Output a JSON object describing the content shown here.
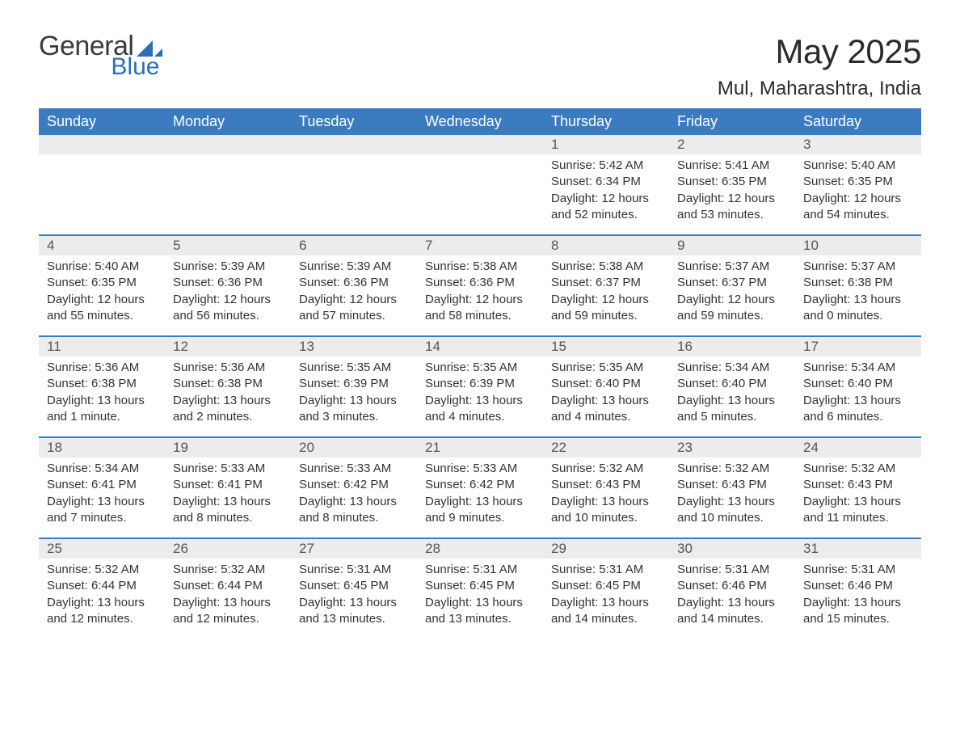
{
  "brand": {
    "word1": "General",
    "word2": "Blue",
    "tri_color": "#2d6fb6"
  },
  "title": "May 2025",
  "location": "Mul, Maharashtra, India",
  "colors": {
    "header_bg": "#3b7bbf",
    "header_fg": "#ffffff",
    "daynum_bg": "#ececec",
    "rule": "#3b7bbf",
    "text": "#333333"
  },
  "day_labels": [
    "Sunday",
    "Monday",
    "Tuesday",
    "Wednesday",
    "Thursday",
    "Friday",
    "Saturday"
  ],
  "weeks": [
    {
      "nums": [
        "",
        "",
        "",
        "",
        "1",
        "2",
        "3"
      ],
      "cells": [
        null,
        null,
        null,
        null,
        {
          "sunrise": "5:42 AM",
          "sunset": "6:34 PM",
          "daylight": "12 hours and 52 minutes."
        },
        {
          "sunrise": "5:41 AM",
          "sunset": "6:35 PM",
          "daylight": "12 hours and 53 minutes."
        },
        {
          "sunrise": "5:40 AM",
          "sunset": "6:35 PM",
          "daylight": "12 hours and 54 minutes."
        }
      ]
    },
    {
      "nums": [
        "4",
        "5",
        "6",
        "7",
        "8",
        "9",
        "10"
      ],
      "cells": [
        {
          "sunrise": "5:40 AM",
          "sunset": "6:35 PM",
          "daylight": "12 hours and 55 minutes."
        },
        {
          "sunrise": "5:39 AM",
          "sunset": "6:36 PM",
          "daylight": "12 hours and 56 minutes."
        },
        {
          "sunrise": "5:39 AM",
          "sunset": "6:36 PM",
          "daylight": "12 hours and 57 minutes."
        },
        {
          "sunrise": "5:38 AM",
          "sunset": "6:36 PM",
          "daylight": "12 hours and 58 minutes."
        },
        {
          "sunrise": "5:38 AM",
          "sunset": "6:37 PM",
          "daylight": "12 hours and 59 minutes."
        },
        {
          "sunrise": "5:37 AM",
          "sunset": "6:37 PM",
          "daylight": "12 hours and 59 minutes."
        },
        {
          "sunrise": "5:37 AM",
          "sunset": "6:38 PM",
          "daylight": "13 hours and 0 minutes."
        }
      ]
    },
    {
      "nums": [
        "11",
        "12",
        "13",
        "14",
        "15",
        "16",
        "17"
      ],
      "cells": [
        {
          "sunrise": "5:36 AM",
          "sunset": "6:38 PM",
          "daylight": "13 hours and 1 minute."
        },
        {
          "sunrise": "5:36 AM",
          "sunset": "6:38 PM",
          "daylight": "13 hours and 2 minutes."
        },
        {
          "sunrise": "5:35 AM",
          "sunset": "6:39 PM",
          "daylight": "13 hours and 3 minutes."
        },
        {
          "sunrise": "5:35 AM",
          "sunset": "6:39 PM",
          "daylight": "13 hours and 4 minutes."
        },
        {
          "sunrise": "5:35 AM",
          "sunset": "6:40 PM",
          "daylight": "13 hours and 4 minutes."
        },
        {
          "sunrise": "5:34 AM",
          "sunset": "6:40 PM",
          "daylight": "13 hours and 5 minutes."
        },
        {
          "sunrise": "5:34 AM",
          "sunset": "6:40 PM",
          "daylight": "13 hours and 6 minutes."
        }
      ]
    },
    {
      "nums": [
        "18",
        "19",
        "20",
        "21",
        "22",
        "23",
        "24"
      ],
      "cells": [
        {
          "sunrise": "5:34 AM",
          "sunset": "6:41 PM",
          "daylight": "13 hours and 7 minutes."
        },
        {
          "sunrise": "5:33 AM",
          "sunset": "6:41 PM",
          "daylight": "13 hours and 8 minutes."
        },
        {
          "sunrise": "5:33 AM",
          "sunset": "6:42 PM",
          "daylight": "13 hours and 8 minutes."
        },
        {
          "sunrise": "5:33 AM",
          "sunset": "6:42 PM",
          "daylight": "13 hours and 9 minutes."
        },
        {
          "sunrise": "5:32 AM",
          "sunset": "6:43 PM",
          "daylight": "13 hours and 10 minutes."
        },
        {
          "sunrise": "5:32 AM",
          "sunset": "6:43 PM",
          "daylight": "13 hours and 10 minutes."
        },
        {
          "sunrise": "5:32 AM",
          "sunset": "6:43 PM",
          "daylight": "13 hours and 11 minutes."
        }
      ]
    },
    {
      "nums": [
        "25",
        "26",
        "27",
        "28",
        "29",
        "30",
        "31"
      ],
      "cells": [
        {
          "sunrise": "5:32 AM",
          "sunset": "6:44 PM",
          "daylight": "13 hours and 12 minutes."
        },
        {
          "sunrise": "5:32 AM",
          "sunset": "6:44 PM",
          "daylight": "13 hours and 12 minutes."
        },
        {
          "sunrise": "5:31 AM",
          "sunset": "6:45 PM",
          "daylight": "13 hours and 13 minutes."
        },
        {
          "sunrise": "5:31 AM",
          "sunset": "6:45 PM",
          "daylight": "13 hours and 13 minutes."
        },
        {
          "sunrise": "5:31 AM",
          "sunset": "6:45 PM",
          "daylight": "13 hours and 14 minutes."
        },
        {
          "sunrise": "5:31 AM",
          "sunset": "6:46 PM",
          "daylight": "13 hours and 14 minutes."
        },
        {
          "sunrise": "5:31 AM",
          "sunset": "6:46 PM",
          "daylight": "13 hours and 15 minutes."
        }
      ]
    }
  ],
  "labels": {
    "sunrise": "Sunrise: ",
    "sunset": "Sunset: ",
    "daylight": "Daylight: "
  }
}
